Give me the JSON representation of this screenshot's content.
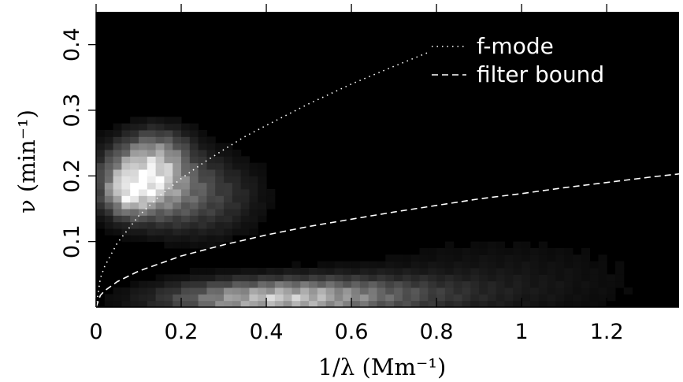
{
  "chart_data": {
    "type": "heatmap",
    "xlabel": "1/λ (Mm⁻¹)",
    "ylabel": "ν (min⁻¹)",
    "xlim": [
      0,
      1.37
    ],
    "ylim": [
      0,
      0.45
    ],
    "x_ticks": [
      {
        "value": 0,
        "label": "0"
      },
      {
        "value": 0.2,
        "label": "0.2"
      },
      {
        "value": 0.4,
        "label": "0.4"
      },
      {
        "value": 0.6,
        "label": "0.6"
      },
      {
        "value": 0.8,
        "label": "0.8"
      },
      {
        "value": 1.0,
        "label": "1"
      },
      {
        "value": 1.2,
        "label": "1.2"
      }
    ],
    "y_ticks": [
      {
        "value": 0.1,
        "label": "0.1"
      },
      {
        "value": 0.2,
        "label": "0.2"
      },
      {
        "value": 0.3,
        "label": "0.3"
      },
      {
        "value": 0.4,
        "label": "0.4"
      }
    ],
    "grid": false,
    "legend_placement": "top-right",
    "colormap": {
      "low": "#000000",
      "high": "#ffffff"
    },
    "heatmap": {
      "cell_dx": 0.02,
      "cell_dy": 0.01,
      "blobs": [
        {
          "x": 0.11,
          "y": 0.195,
          "sx": 0.065,
          "sy": 0.035,
          "amp": 0.85
        },
        {
          "x": 0.07,
          "y": 0.17,
          "sx": 0.03,
          "sy": 0.02,
          "amp": 0.35
        },
        {
          "x": 0.24,
          "y": 0.17,
          "sx": 0.09,
          "sy": 0.04,
          "amp": 0.28
        },
        {
          "x": 0.15,
          "y": 0.24,
          "sx": 0.05,
          "sy": 0.025,
          "amp": 0.25
        },
        {
          "x": 0.4,
          "y": 0.012,
          "sx": 0.16,
          "sy": 0.018,
          "amp": 0.55
        },
        {
          "x": 0.58,
          "y": 0.02,
          "sx": 0.2,
          "sy": 0.02,
          "amp": 0.3
        },
        {
          "x": 0.95,
          "y": 0.04,
          "sx": 0.25,
          "sy": 0.05,
          "amp": 0.08
        }
      ]
    },
    "series": [
      {
        "name": "f-mode",
        "style": "dotted",
        "color": "#ffffff",
        "points": [
          [
            0,
            0
          ],
          [
            0.01,
            0.044
          ],
          [
            0.02,
            0.062
          ],
          [
            0.05,
            0.098
          ],
          [
            0.1,
            0.139
          ],
          [
            0.15,
            0.17
          ],
          [
            0.2,
            0.196
          ],
          [
            0.25,
            0.219
          ],
          [
            0.3,
            0.24
          ],
          [
            0.35,
            0.26
          ],
          [
            0.4,
            0.277
          ],
          [
            0.5,
            0.31
          ],
          [
            0.6,
            0.34
          ],
          [
            0.7,
            0.367
          ],
          [
            0.78,
            0.388
          ]
        ]
      },
      {
        "name": "filter bound",
        "style": "dashed",
        "color": "#ffffff",
        "points": [
          [
            0,
            0
          ],
          [
            0.01,
            0.018
          ],
          [
            0.02,
            0.025
          ],
          [
            0.05,
            0.039
          ],
          [
            0.1,
            0.055
          ],
          [
            0.2,
            0.078
          ],
          [
            0.3,
            0.095
          ],
          [
            0.4,
            0.11
          ],
          [
            0.5,
            0.123
          ],
          [
            0.6,
            0.134
          ],
          [
            0.7,
            0.145
          ],
          [
            0.8,
            0.155
          ],
          [
            0.9,
            0.165
          ],
          [
            1.0,
            0.173
          ],
          [
            1.1,
            0.182
          ],
          [
            1.2,
            0.19
          ],
          [
            1.3,
            0.198
          ],
          [
            1.37,
            0.203
          ]
        ]
      }
    ]
  }
}
